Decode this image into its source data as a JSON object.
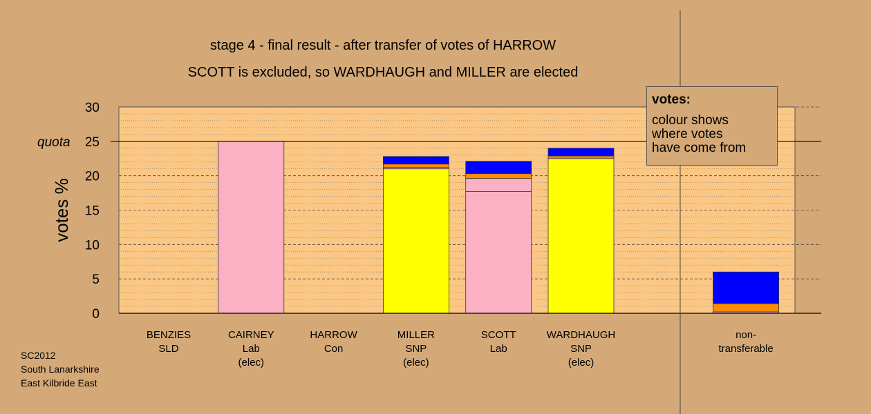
{
  "titles": {
    "line1": "stage 4 - final result - after transfer of votes of HARROW",
    "line2": "SCOTT is excluded, so WARDHAUGH and MILLER are elected"
  },
  "legend": {
    "title": "votes:",
    "lines": [
      "colour shows",
      "where votes",
      "have come from"
    ]
  },
  "source": [
    "SC2012",
    "South Lanarkshire",
    "East Kilbride East"
  ],
  "colors": {
    "background": "#d4a977",
    "plot_area": "#fbc784",
    "Lab": "#fbb0c4",
    "SNP": "#ffff00",
    "orange": "#ff8c00",
    "blue": "#0000ff"
  },
  "chart_data": {
    "type": "bar",
    "stacked": true,
    "ylabel": "votes %",
    "ylim": [
      0,
      30
    ],
    "yticks": [
      0,
      5,
      10,
      15,
      20,
      25,
      30
    ],
    "quota": {
      "label": "quota",
      "value": 25
    },
    "grid": true,
    "categories": [
      {
        "lines": [
          "BENZIES",
          "SLD"
        ],
        "segments": []
      },
      {
        "lines": [
          "CAIRNEY",
          "Lab",
          "(elec)"
        ],
        "segments": [
          {
            "value": 25.0,
            "color": "#fbb0c4"
          }
        ]
      },
      {
        "lines": [
          "HARROW",
          "Con"
        ],
        "segments": []
      },
      {
        "lines": [
          "MILLER",
          "SNP",
          "(elec)"
        ],
        "segments": [
          {
            "value": 21.0,
            "color": "#ffff00"
          },
          {
            "value": 0.2,
            "color": "#fbb0c4"
          },
          {
            "value": 0.5,
            "color": "#ff8c00"
          },
          {
            "value": 1.1,
            "color": "#0000ff"
          }
        ]
      },
      {
        "lines": [
          "SCOTT",
          "Lab"
        ],
        "segments": [
          {
            "value": 17.7,
            "color": "#fbb0c4"
          },
          {
            "value": 1.9,
            "color": "#fbb0c4"
          },
          {
            "value": 0.7,
            "color": "#ff8c00"
          },
          {
            "value": 1.8,
            "color": "#0000ff"
          }
        ]
      },
      {
        "lines": [
          "WARDHAUGH",
          "SNP",
          "(elec)"
        ],
        "segments": [
          {
            "value": 22.5,
            "color": "#ffff00"
          },
          {
            "value": 0.2,
            "color": "#fbb0c4"
          },
          {
            "value": 0.2,
            "color": "#ff8c00"
          },
          {
            "value": 1.1,
            "color": "#0000ff"
          }
        ]
      },
      {
        "lines": [],
        "segments": []
      },
      {
        "lines": [
          "non-",
          "transferable"
        ],
        "segments": [
          {
            "value": 0.2,
            "color": "#fbb0c4"
          },
          {
            "value": 1.2,
            "color": "#ff8c00"
          },
          {
            "value": 4.6,
            "color": "#0000ff"
          }
        ]
      }
    ]
  }
}
